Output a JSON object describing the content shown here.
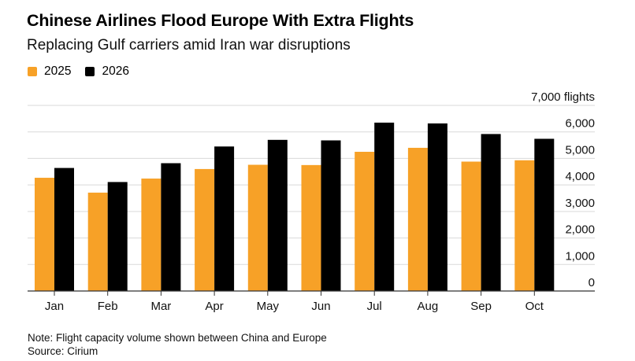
{
  "header": {
    "title": "Chinese Airlines Flood Europe With Extra Flights",
    "subtitle": "Replacing Gulf carriers amid Iran war disruptions"
  },
  "legend": [
    {
      "label": "2025",
      "color": "#f7a127"
    },
    {
      "label": "2026",
      "color": "#000000"
    }
  ],
  "footer": {
    "note": "Note: Flight capacity volume shown between China and Europe",
    "source": "Source: Cirium"
  },
  "chart_data": {
    "type": "bar",
    "title": "Chinese Airlines Flood Europe With Extra Flights",
    "subtitle": "Replacing Gulf carriers amid Iran war disruptions",
    "xlabel": "",
    "ylabel": "flights",
    "categories": [
      "Jan",
      "Feb",
      "Mar",
      "Apr",
      "May",
      "Jun",
      "Jul",
      "Aug",
      "Sep",
      "Oct"
    ],
    "series": [
      {
        "name": "2025",
        "color": "#f7a127",
        "values": [
          4270,
          3710,
          4240,
          4600,
          4760,
          4750,
          5250,
          5400,
          4880,
          4930
        ]
      },
      {
        "name": "2026",
        "color": "#000000",
        "values": [
          4640,
          4110,
          4820,
          5450,
          5700,
          5680,
          6350,
          6320,
          5920,
          5740
        ]
      }
    ],
    "ylim": [
      0,
      7000
    ],
    "yticks": [
      0,
      1000,
      2000,
      3000,
      4000,
      5000,
      6000,
      7000
    ],
    "ytick_labels": [
      "0",
      "1,000",
      "2,000",
      "3,000",
      "4,000",
      "5,000",
      "6,000",
      "7,000 flights"
    ],
    "y_axis_position": "right",
    "grid": true,
    "legend_position": "top-left"
  }
}
